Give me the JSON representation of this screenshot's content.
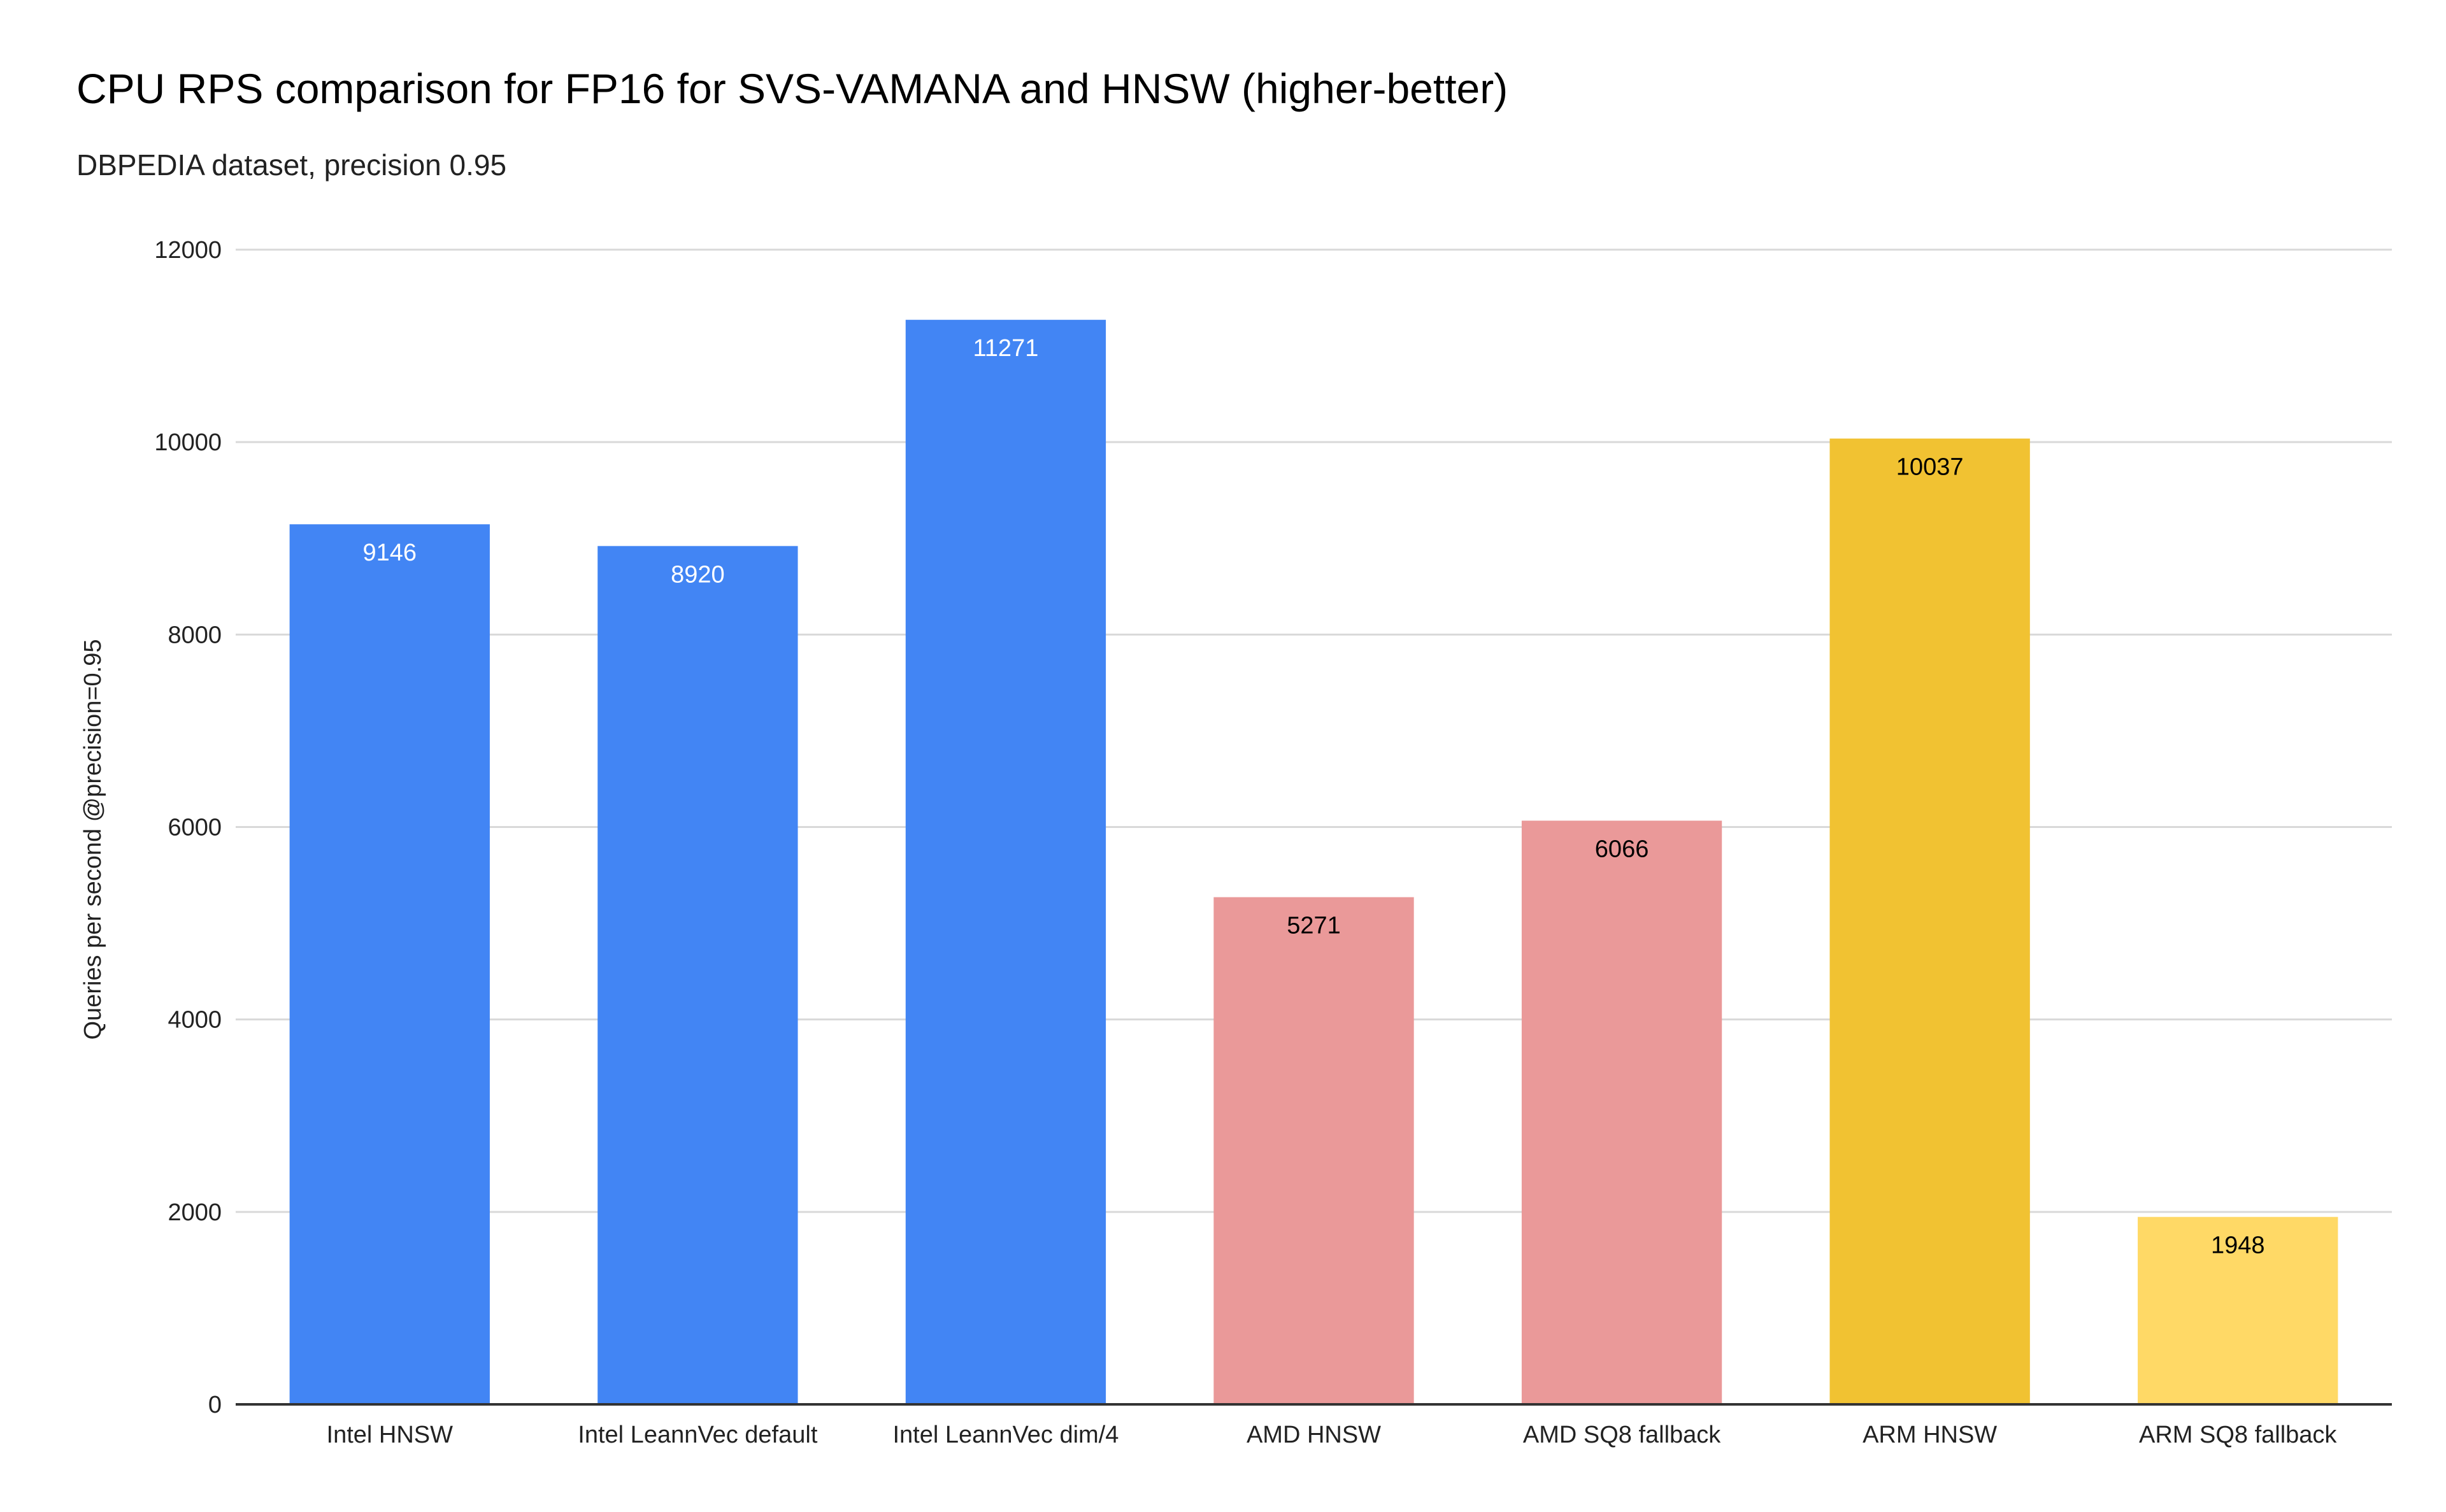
{
  "chart_data": {
    "type": "bar",
    "title": "CPU RPS comparison for FP16 for SVS-VAMANA and HNSW (higher-better)",
    "subtitle": "DBPEDIA dataset, precision 0.95",
    "xlabel": "",
    "ylabel": "Queries per second @precision=0.95",
    "ylim": [
      0,
      12000
    ],
    "yticks": [
      0,
      2000,
      4000,
      6000,
      8000,
      10000,
      12000
    ],
    "grid": true,
    "legend": "none",
    "categories": [
      "Intel HNSW",
      "Intel LeannVec default",
      "Intel LeannVec dim/4",
      "AMD HNSW",
      "AMD SQ8 fallback",
      "ARM HNSW",
      "ARM SQ8 fallback"
    ],
    "values": [
      9146,
      8920,
      11271,
      5271,
      6066,
      10037,
      1948
    ],
    "bar_colors": [
      "#4285f4",
      "#4285f4",
      "#4285f4",
      "#ea9999",
      "#ea9999",
      "#f1c232",
      "#ffd966"
    ],
    "label_colors": [
      "#ffffff",
      "#ffffff",
      "#ffffff",
      "#000000",
      "#000000",
      "#000000",
      "#000000"
    ],
    "grid_color": "#d9d9d9",
    "axis_color": "#333333"
  }
}
